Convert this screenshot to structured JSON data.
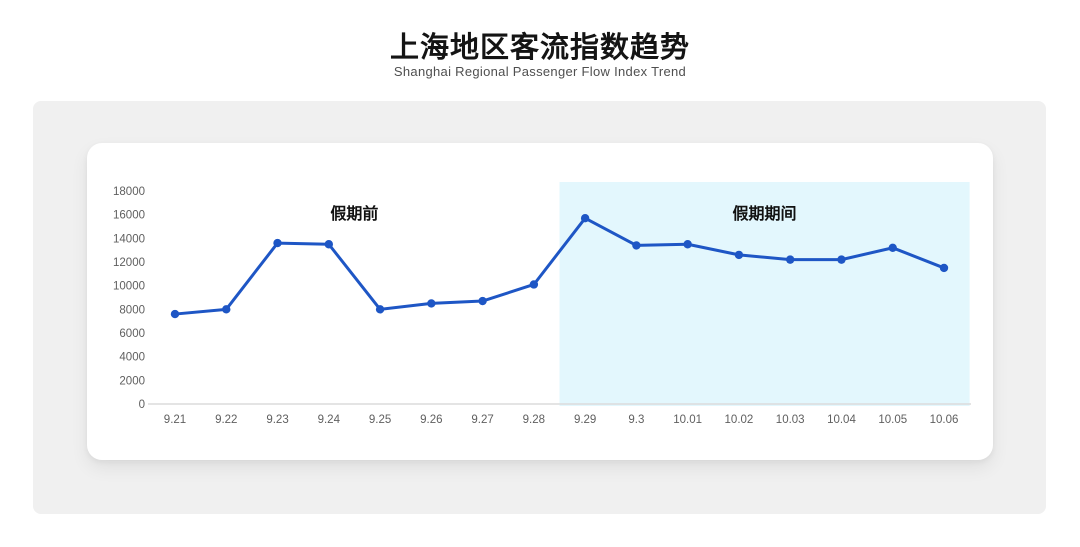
{
  "header": {
    "title": "上海地区客流指数趋势",
    "subtitle": "Shanghai Regional Passenger Flow Index Trend"
  },
  "chart_data": {
    "type": "line",
    "title": "上海地区客流指数趋势",
    "subtitle": "Shanghai Regional Passenger Flow Index Trend",
    "categories": [
      "9.21",
      "9.22",
      "9.23",
      "9.24",
      "9.25",
      "9.26",
      "9.27",
      "9.28",
      "9.29",
      "9.3",
      "10.01",
      "10.02",
      "10.03",
      "10.04",
      "10.05",
      "10.06"
    ],
    "values": [
      7600,
      8000,
      13600,
      13500,
      8000,
      8500,
      8700,
      10100,
      15700,
      13400,
      13500,
      12600,
      12200,
      12200,
      13200,
      11500
    ],
    "xlabel": "",
    "ylabel": "",
    "ylim": [
      0,
      18000
    ],
    "ytick_step": 2000,
    "grid": false,
    "legend_position": "none",
    "line_color": "#1e56c5",
    "marker": "circle",
    "annotations": [
      {
        "label": "假期前",
        "span": [
          "9.21",
          "9.28"
        ]
      },
      {
        "label": "假期期间",
        "span": [
          "9.29",
          "10.06"
        ]
      }
    ],
    "shaded_region": {
      "from": "9.29",
      "to": "10.06",
      "color": "#e3f7fd",
      "label": "假期期间"
    }
  },
  "colors": {
    "page_background": "#ffffff",
    "panel_background": "#f0f0f0",
    "card_background": "#ffffff",
    "line": "#1e56c5",
    "shaded_region": "#e3f7fd",
    "axis_line": "#dcdcdc",
    "tick_text": "#5f5f5f",
    "annotation_text": "#111111",
    "title_text": "#141414",
    "subtitle_text": "#4f4f4f"
  }
}
